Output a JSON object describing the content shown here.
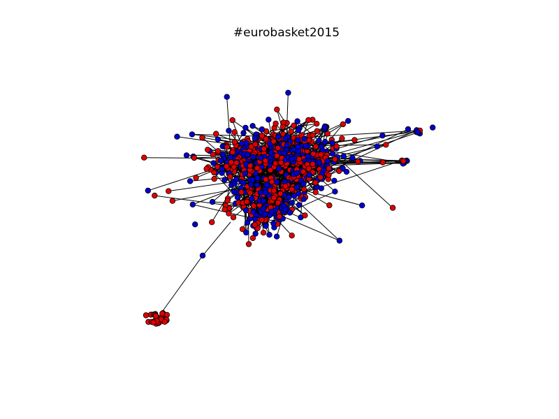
{
  "title": "#eurobasket2015"
}
